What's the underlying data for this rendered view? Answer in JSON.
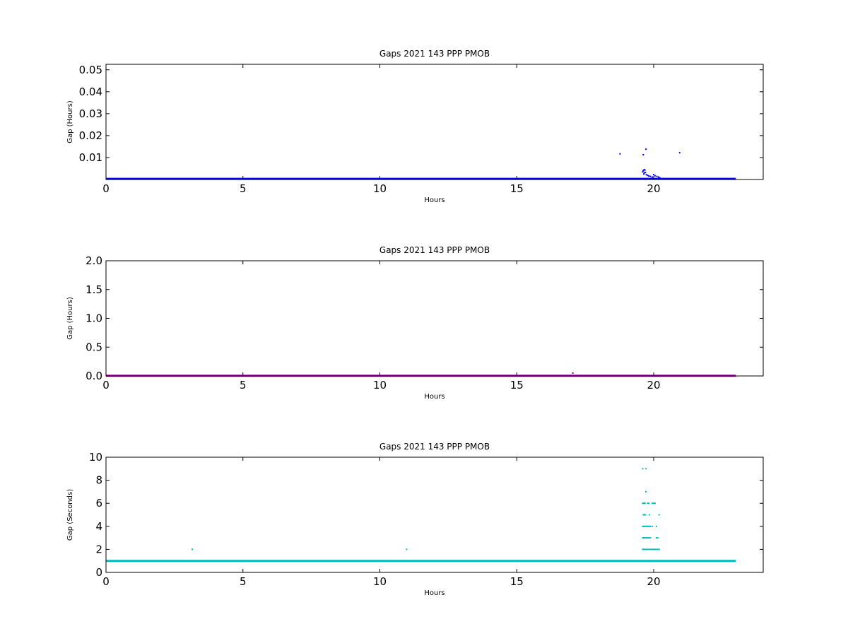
{
  "chart_data": [
    {
      "type": "scatter",
      "title": "Gaps 2021 143 PPP  PMOB",
      "xlabel": "Hours",
      "ylabel": "Gap (Hours)",
      "xlim": [
        0,
        24
      ],
      "ylim": [
        0,
        0.0525
      ],
      "xticks": [
        0,
        5,
        10,
        15,
        20
      ],
      "yticks": [
        0.01,
        0.02,
        0.03,
        0.04,
        0.05
      ],
      "ytick_labels": [
        "0.01",
        "0.02",
        "0.03",
        "0.04",
        "0.05"
      ],
      "color": "#0000ff",
      "grid": false,
      "baseline": {
        "x_start": 0,
        "x_end": 23,
        "y": 0.0003
      },
      "points": [
        {
          "x": 18.77,
          "y": 0.0117
        },
        {
          "x": 19.62,
          "y": 0.0113
        },
        {
          "x": 19.72,
          "y": 0.0138
        },
        {
          "x": 20.95,
          "y": 0.0122
        },
        {
          "x": 19.6,
          "y": 0.0035
        },
        {
          "x": 19.62,
          "y": 0.004
        },
        {
          "x": 19.65,
          "y": 0.0045
        },
        {
          "x": 19.68,
          "y": 0.0043
        },
        {
          "x": 19.7,
          "y": 0.0032
        },
        {
          "x": 19.64,
          "y": 0.0025
        },
        {
          "x": 19.66,
          "y": 0.003
        },
        {
          "x": 19.73,
          "y": 0.0022
        },
        {
          "x": 19.78,
          "y": 0.0019
        },
        {
          "x": 19.82,
          "y": 0.0016
        },
        {
          "x": 19.88,
          "y": 0.0014
        },
        {
          "x": 19.95,
          "y": 0.0011
        },
        {
          "x": 20.0,
          "y": 0.0022
        },
        {
          "x": 20.05,
          "y": 0.0017
        },
        {
          "x": 20.12,
          "y": 0.0014
        },
        {
          "x": 20.18,
          "y": 0.0011
        },
        {
          "x": 20.22,
          "y": 0.0008
        }
      ]
    },
    {
      "type": "scatter",
      "title": "Gaps 2021 143 PPP  PMOB",
      "xlabel": "Hours",
      "ylabel": "Gap (Hours)",
      "xlim": [
        0,
        24
      ],
      "ylim": [
        0,
        2.0
      ],
      "xticks": [
        0,
        5,
        10,
        15,
        20
      ],
      "yticks": [
        0.0,
        0.5,
        1.0,
        1.5,
        2.0
      ],
      "ytick_labels": [
        "0.0",
        "0.5",
        "1.0",
        "1.5",
        "2.0"
      ],
      "color": "#aa00aa",
      "grid": false,
      "baseline": {
        "x_start": 0,
        "x_end": 23,
        "y": 0.003
      },
      "points": [
        {
          "x": 17.05,
          "y": 0.05
        }
      ]
    },
    {
      "type": "scatter",
      "title": "Gaps 2021 143 PPP  PMOB",
      "xlabel": "Hours",
      "ylabel": "Gap (Seconds)",
      "xlim": [
        0,
        24
      ],
      "ylim": [
        0,
        10
      ],
      "xticks": [
        0,
        5,
        10,
        15,
        20
      ],
      "yticks": [
        0,
        2,
        4,
        6,
        8,
        10
      ],
      "ytick_labels": [
        "0",
        "2",
        "4",
        "6",
        "8",
        "10"
      ],
      "color": "#00bbbb",
      "grid": false,
      "baseline": {
        "x_start": 0,
        "x_end": 23,
        "y": 1
      },
      "points": [
        {
          "x": 3.15,
          "y": 2
        },
        {
          "x": 10.98,
          "y": 2
        },
        {
          "x": 19.6,
          "y": 9
        },
        {
          "x": 19.72,
          "y": 9
        },
        {
          "x": 19.72,
          "y": 7
        },
        {
          "x": 19.6,
          "y": 6
        },
        {
          "x": 19.64,
          "y": 6
        },
        {
          "x": 19.68,
          "y": 6
        },
        {
          "x": 19.78,
          "y": 6
        },
        {
          "x": 19.82,
          "y": 6
        },
        {
          "x": 19.95,
          "y": 6
        },
        {
          "x": 20.0,
          "y": 6
        },
        {
          "x": 20.05,
          "y": 6
        },
        {
          "x": 19.62,
          "y": 5
        },
        {
          "x": 19.66,
          "y": 5
        },
        {
          "x": 19.7,
          "y": 5
        },
        {
          "x": 19.85,
          "y": 5
        },
        {
          "x": 20.2,
          "y": 5
        },
        {
          "x": 19.6,
          "y": 4
        },
        {
          "x": 19.64,
          "y": 4
        },
        {
          "x": 19.68,
          "y": 4
        },
        {
          "x": 19.72,
          "y": 4
        },
        {
          "x": 19.76,
          "y": 4
        },
        {
          "x": 19.8,
          "y": 4
        },
        {
          "x": 19.84,
          "y": 4
        },
        {
          "x": 19.88,
          "y": 4
        },
        {
          "x": 19.95,
          "y": 4
        },
        {
          "x": 20.1,
          "y": 4
        },
        {
          "x": 19.6,
          "y": 3
        },
        {
          "x": 19.64,
          "y": 3
        },
        {
          "x": 19.68,
          "y": 3
        },
        {
          "x": 19.72,
          "y": 3
        },
        {
          "x": 19.76,
          "y": 3
        },
        {
          "x": 19.8,
          "y": 3
        },
        {
          "x": 19.84,
          "y": 3
        },
        {
          "x": 19.88,
          "y": 3
        },
        {
          "x": 20.1,
          "y": 3
        },
        {
          "x": 20.15,
          "y": 3
        },
        {
          "x": 19.6,
          "y": 2
        },
        {
          "x": 19.65,
          "y": 2
        },
        {
          "x": 19.7,
          "y": 2
        },
        {
          "x": 19.75,
          "y": 2
        },
        {
          "x": 19.8,
          "y": 2
        },
        {
          "x": 19.85,
          "y": 2
        },
        {
          "x": 19.9,
          "y": 2
        },
        {
          "x": 19.95,
          "y": 2
        },
        {
          "x": 20.0,
          "y": 2
        },
        {
          "x": 20.05,
          "y": 2
        },
        {
          "x": 20.1,
          "y": 2
        },
        {
          "x": 20.15,
          "y": 2
        },
        {
          "x": 20.2,
          "y": 2
        }
      ]
    }
  ]
}
